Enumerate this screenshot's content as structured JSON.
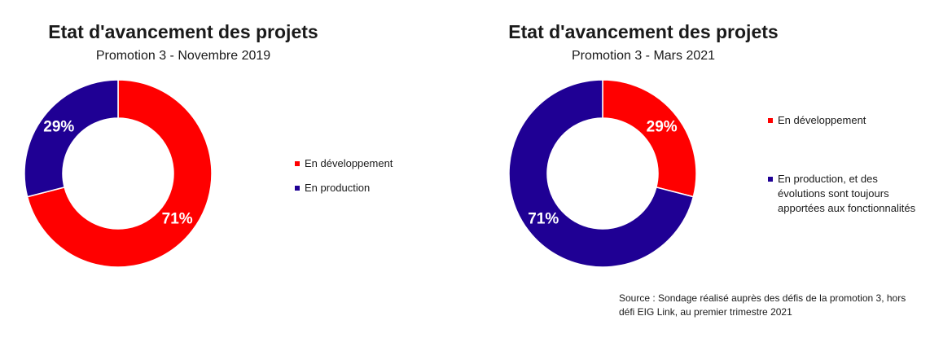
{
  "colors": {
    "en_developpement": "#ff0000",
    "en_production": "#1f0094",
    "label_text": "#ffffff"
  },
  "chart_data": [
    {
      "type": "pie",
      "donut": true,
      "title": "Etat d'avancement des projets",
      "subtitle": "Promotion 3 - Novembre 2019",
      "legend_position": "right",
      "slices": [
        {
          "label": "En développement",
          "value": 71,
          "display": "71%",
          "color": "#ff0000"
        },
        {
          "label": "En production",
          "value": 29,
          "display": "29%",
          "color": "#1f0094"
        }
      ]
    },
    {
      "type": "pie",
      "donut": true,
      "title": "Etat d'avancement des projets",
      "subtitle": "Promotion 3 - Mars 2021",
      "legend_position": "right",
      "slices": [
        {
          "label": "En développement",
          "value": 29,
          "display": "29%",
          "color": "#ff0000"
        },
        {
          "label": "En production, et des évolutions sont toujours apportées aux fonctionnalités",
          "value": 71,
          "display": "71%",
          "color": "#1f0094"
        }
      ]
    }
  ],
  "source": "Source : Sondage réalisé auprès des défis de la promotion 3, hors défi EIG Link, au premier trimestre 2021"
}
